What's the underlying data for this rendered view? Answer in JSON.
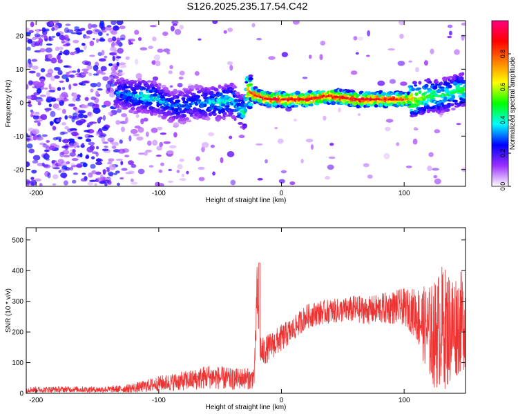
{
  "title": "S126.2025.235.17.54.C42",
  "chart_data": [
    {
      "type": "heatmap",
      "title": "S126.2025.235.17.54.C42",
      "xlabel": "Height of straight line (km)",
      "ylabel": "Frequency (Hz)",
      "xlim": [
        -208,
        150
      ],
      "ylim": [
        -25,
        24.5
      ],
      "xticks": [
        -200,
        -100,
        0,
        100
      ],
      "xtick_labels": [
        "-200",
        "-100",
        "0",
        "100"
      ],
      "yticks": [
        -20,
        -10,
        0,
        10,
        20
      ],
      "ytick_labels": [
        "-20",
        "-10",
        "0",
        "10",
        "20"
      ],
      "colorbar": {
        "label": "Normalized spectral amplitude",
        "range": [
          0,
          1
        ],
        "ticks": [
          0,
          0.2,
          0.4,
          0.6,
          0.8
        ],
        "tick_labels": [
          "0.0",
          "0.2",
          "0.4",
          "0.6",
          "0.8"
        ],
        "colors": [
          "#ffffff",
          "#9b30ff",
          "#0000ff",
          "#00ffff",
          "#00ff00",
          "#ffff00",
          "#ff8000",
          "#ff0000",
          "#ff0080"
        ]
      },
      "ridge": {
        "x": [
          -130,
          -120,
          -110,
          -100,
          -90,
          -80,
          -70,
          -60,
          -50,
          -40,
          -35,
          -30,
          -28,
          -25,
          -20,
          -10,
          0,
          20,
          40,
          60,
          80,
          100,
          110,
          120,
          130,
          140,
          150
        ],
        "freq": [
          3,
          2,
          2,
          1,
          -1,
          -1,
          0,
          0,
          0,
          1,
          -2,
          -3,
          4,
          3,
          2,
          1,
          1,
          1,
          2,
          1,
          1,
          1,
          1,
          2,
          2,
          3,
          4
        ],
        "amplitude": [
          0.3,
          0.35,
          0.4,
          0.35,
          0.3,
          0.3,
          0.3,
          0.35,
          0.4,
          0.4,
          0.35,
          0.45,
          0.7,
          0.8,
          0.85,
          0.9,
          0.9,
          0.9,
          0.85,
          0.9,
          0.9,
          0.85,
          0.6,
          0.5,
          0.45,
          0.45,
          0.5
        ]
      }
    },
    {
      "type": "line",
      "xlabel": "Height of straight line (km)",
      "ylabel": "SNR (10 * v/v)",
      "xlim": [
        -208,
        150
      ],
      "ylim": [
        0,
        540
      ],
      "xticks": [
        -200,
        -100,
        0,
        100
      ],
      "xtick_labels": [
        "-200",
        "-100",
        "0",
        "100"
      ],
      "yticks": [
        0,
        100,
        200,
        300,
        400,
        500
      ],
      "ytick_labels": [
        "0",
        "100",
        "200",
        "300",
        "400",
        "500"
      ],
      "series": [
        {
          "name": "SNR",
          "color": "#ee3333",
          "x": [
            -208,
            -190,
            -170,
            -150,
            -130,
            -115,
            -100,
            -85,
            -70,
            -60,
            -50,
            -45,
            -40,
            -35,
            -30,
            -25,
            -22,
            -20,
            -18,
            -16,
            -10,
            0,
            10,
            20,
            30,
            40,
            50,
            60,
            70,
            80,
            90,
            100,
            105,
            110,
            115,
            120,
            125,
            130,
            135,
            140,
            145,
            150
          ],
          "mean": [
            12,
            12,
            13,
            12,
            14,
            20,
            32,
            38,
            45,
            55,
            50,
            48,
            45,
            48,
            50,
            45,
            60,
            330,
            170,
            130,
            150,
            180,
            210,
            250,
            262,
            268,
            270,
            275,
            270,
            275,
            280,
            282,
            270,
            260,
            230,
            200,
            190,
            220,
            210,
            220,
            230,
            240
          ],
          "spread": [
            10,
            10,
            10,
            10,
            12,
            18,
            25,
            30,
            35,
            40,
            38,
            38,
            35,
            35,
            35,
            35,
            40,
            100,
            60,
            50,
            45,
            45,
            40,
            40,
            40,
            40,
            40,
            45,
            45,
            50,
            55,
            60,
            70,
            90,
            120,
            150,
            180,
            200,
            200,
            180,
            170,
            160
          ]
        }
      ]
    }
  ]
}
